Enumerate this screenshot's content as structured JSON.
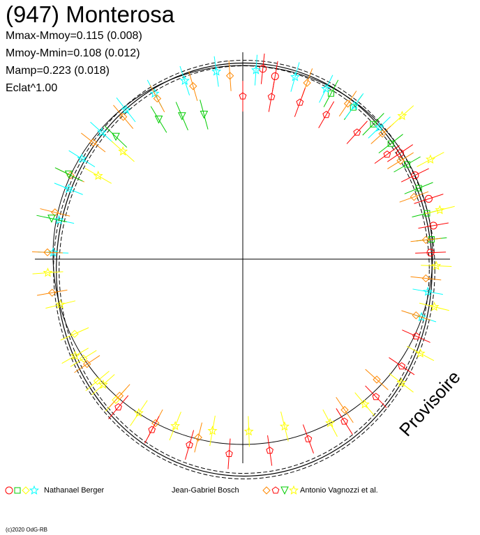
{
  "title": "(947) Monterosa",
  "stats": {
    "line1": "Mmax-Mmoy=0.115 (0.008)",
    "line2": "Mmoy-Mmin=0.108 (0.012)",
    "line3": "Mamp=0.223 (0.018)",
    "line4": "Eclat^1.00"
  },
  "watermark": "Provisoire",
  "copyright": "(c)2020 OdG-RB",
  "legend": {
    "observer1": "Nathanael Berger",
    "observer2": "Jean-Gabriel Bosch",
    "observer3": "Antonio Vagnozzi et al."
  },
  "chart_data": {
    "type": "polar-lightcurve",
    "description_axes": "crosshair axes, no tick labels",
    "reference_circle_radius": 1.0,
    "model_curve_rx": 0.99,
    "model_curve_ry": 0.99,
    "series": [
      {
        "observer": "Nathanael Berger",
        "color": "#ff0000",
        "marker": "circle",
        "points": [
          [
            88,
            0.99
          ],
          [
            80,
            1.02
          ],
          [
            72,
            1.03
          ],
          [
            64,
            1.01
          ],
          [
            56,
            1.0
          ],
          [
            10,
            0.98
          ],
          [
            6,
            1.01
          ]
        ]
      },
      {
        "observer": "Nathanael Berger",
        "color": "#00cc00",
        "marker": "square",
        "points": [
          [
            84,
            1.0
          ],
          [
            76,
            1.0
          ],
          [
            68,
            1.0
          ],
          [
            60,
            1.0
          ],
          [
            52,
            0.99
          ],
          [
            44,
            0.99
          ],
          [
            36,
            0.99
          ],
          [
            28,
            0.99
          ]
        ]
      },
      {
        "observer": "Nathanael Berger",
        "color": "#ffff00",
        "marker": "diamond",
        "points": [
          [
            246,
            0.97
          ],
          [
            238,
            0.99
          ],
          [
            230,
            1.0
          ],
          [
            222,
            1.0
          ]
        ]
      },
      {
        "observer": "Nathanael Berger",
        "color": "#00ffff",
        "marker": "star",
        "points": [
          [
            272,
            1.0
          ],
          [
            282,
            0.99
          ],
          [
            292,
            0.99
          ],
          [
            302,
            1.0
          ],
          [
            312,
            1.0
          ],
          [
            322,
            1.0
          ],
          [
            332,
            0.99
          ],
          [
            342,
            0.99
          ],
          [
            352,
            1.0
          ],
          [
            4,
            1.0
          ],
          [
            16,
            1.0
          ],
          [
            26,
            1.0
          ],
          [
            36,
            1.0
          ],
          [
            46,
            1.0
          ],
          [
            100,
            0.99
          ],
          [
            108,
            0.99
          ]
        ]
      },
      {
        "observer": "Antonio Vagnozzi et al.",
        "color": "#ff8800",
        "marker": "diamond",
        "points": [
          [
            260,
            1.02
          ],
          [
            272,
            1.03
          ],
          [
            284,
            1.02
          ],
          [
            296,
            1.01
          ],
          [
            308,
            1.0
          ],
          [
            320,
            0.98
          ],
          [
            332,
            0.96
          ],
          [
            344,
            0.95
          ],
          [
            356,
            0.97
          ],
          [
            20,
            0.99
          ],
          [
            34,
            0.99
          ],
          [
            48,
            0.99
          ],
          [
            58,
            0.98
          ],
          [
            70,
            0.96
          ],
          [
            84,
            0.97
          ],
          [
            96,
            0.97
          ],
          [
            108,
            0.96
          ],
          [
            132,
            0.95
          ],
          [
            146,
            0.96
          ],
          [
            194,
            0.97
          ],
          [
            208,
            0.98
          ],
          [
            222,
            0.97
          ],
          [
            236,
            0.99
          ]
        ]
      },
      {
        "observer": "Antonio Vagnozzi et al.",
        "color": "#ff0000",
        "marker": "pentagon",
        "points": [
          [
            0,
            0.86
          ],
          [
            10,
            0.87
          ],
          [
            20,
            0.88
          ],
          [
            30,
            0.88
          ],
          [
            42,
            0.9
          ],
          [
            54,
            0.94
          ],
          [
            114,
            1.0
          ],
          [
            124,
            1.01
          ],
          [
            136,
            1.01
          ],
          [
            148,
            1.01
          ],
          [
            160,
            1.01
          ],
          [
            172,
            1.02
          ],
          [
            184,
            1.03
          ],
          [
            196,
            1.02
          ],
          [
            208,
            1.02
          ],
          [
            220,
            1.02
          ]
        ]
      },
      {
        "observer": "Antonio Vagnozzi et al.",
        "color": "#00cc00",
        "marker": "triangle",
        "points": [
          [
            345,
            0.79
          ],
          [
            337,
            0.82
          ],
          [
            329,
            0.86
          ],
          [
            314,
            0.93
          ],
          [
            296,
            1.02
          ],
          [
            282,
            1.03
          ]
        ]
      },
      {
        "observer": "Antonio Vagnozzi et al.",
        "color": "#ffff00",
        "marker": "star",
        "points": [
          [
            48,
            1.13
          ],
          [
            62,
            1.12
          ],
          [
            76,
            1.07
          ],
          [
            92,
            1.02
          ],
          [
            104,
            1.04
          ],
          [
            118,
            1.06
          ],
          [
            128,
            1.06
          ],
          [
            140,
            1.0
          ],
          [
            152,
            0.98
          ],
          [
            166,
            0.91
          ],
          [
            178,
            0.91
          ],
          [
            190,
            0.92
          ],
          [
            202,
            0.95
          ],
          [
            214,
            0.98
          ],
          [
            228,
            0.99
          ],
          [
            240,
            1.02
          ],
          [
            256,
            0.99
          ],
          [
            266,
            1.03
          ],
          [
            300,
            0.88
          ],
          [
            312,
            0.85
          ]
        ]
      }
    ]
  }
}
